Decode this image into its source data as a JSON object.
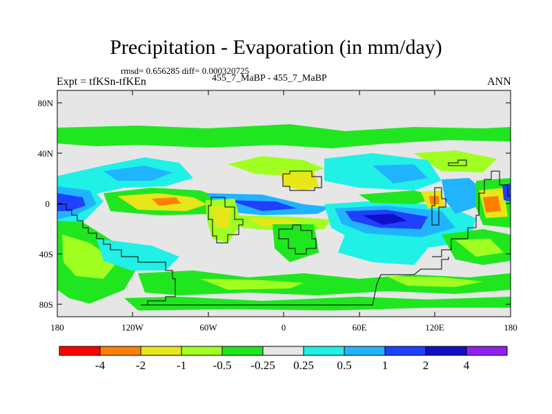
{
  "header": {
    "title": "Precipitation - Evaporation (in mm/day)",
    "stats": "rmsd= 0.656285 diff= 0.000320725",
    "experiment": "Expt = tfKSn-tfKEn",
    "case": "455_7_MaBP - 455_7_MaBP",
    "season": "ANN"
  },
  "axes": {
    "lat_labels": [
      "80N",
      "40N",
      "0",
      "40S",
      "80S"
    ],
    "lon_labels": [
      "180",
      "120W",
      "60W",
      "0",
      "60E",
      "120E",
      "180"
    ]
  },
  "colorbar": {
    "colors": [
      "#ff0000",
      "#ff8000",
      "#e6e619",
      "#a0ff20",
      "#20e620",
      "#e6e6e6",
      "#20f0e6",
      "#20b4ff",
      "#2040ff",
      "#1010c8",
      "#9020f0"
    ],
    "labels": [
      "-4",
      "-2",
      "-1",
      "-0.5",
      "-0.25",
      "0.25",
      "0.5",
      "1",
      "2",
      "4"
    ]
  },
  "field_colors": {
    "background": "#e6e6e6",
    "pos1": "#20f0e6",
    "pos2": "#20b4ff",
    "pos3": "#2040ff",
    "pos4": "#1010c8",
    "neg1": "#20e620",
    "neg2": "#a0ff20",
    "neg3": "#e6e619",
    "neg4": "#ff8000",
    "neg5": "#ff0000"
  }
}
